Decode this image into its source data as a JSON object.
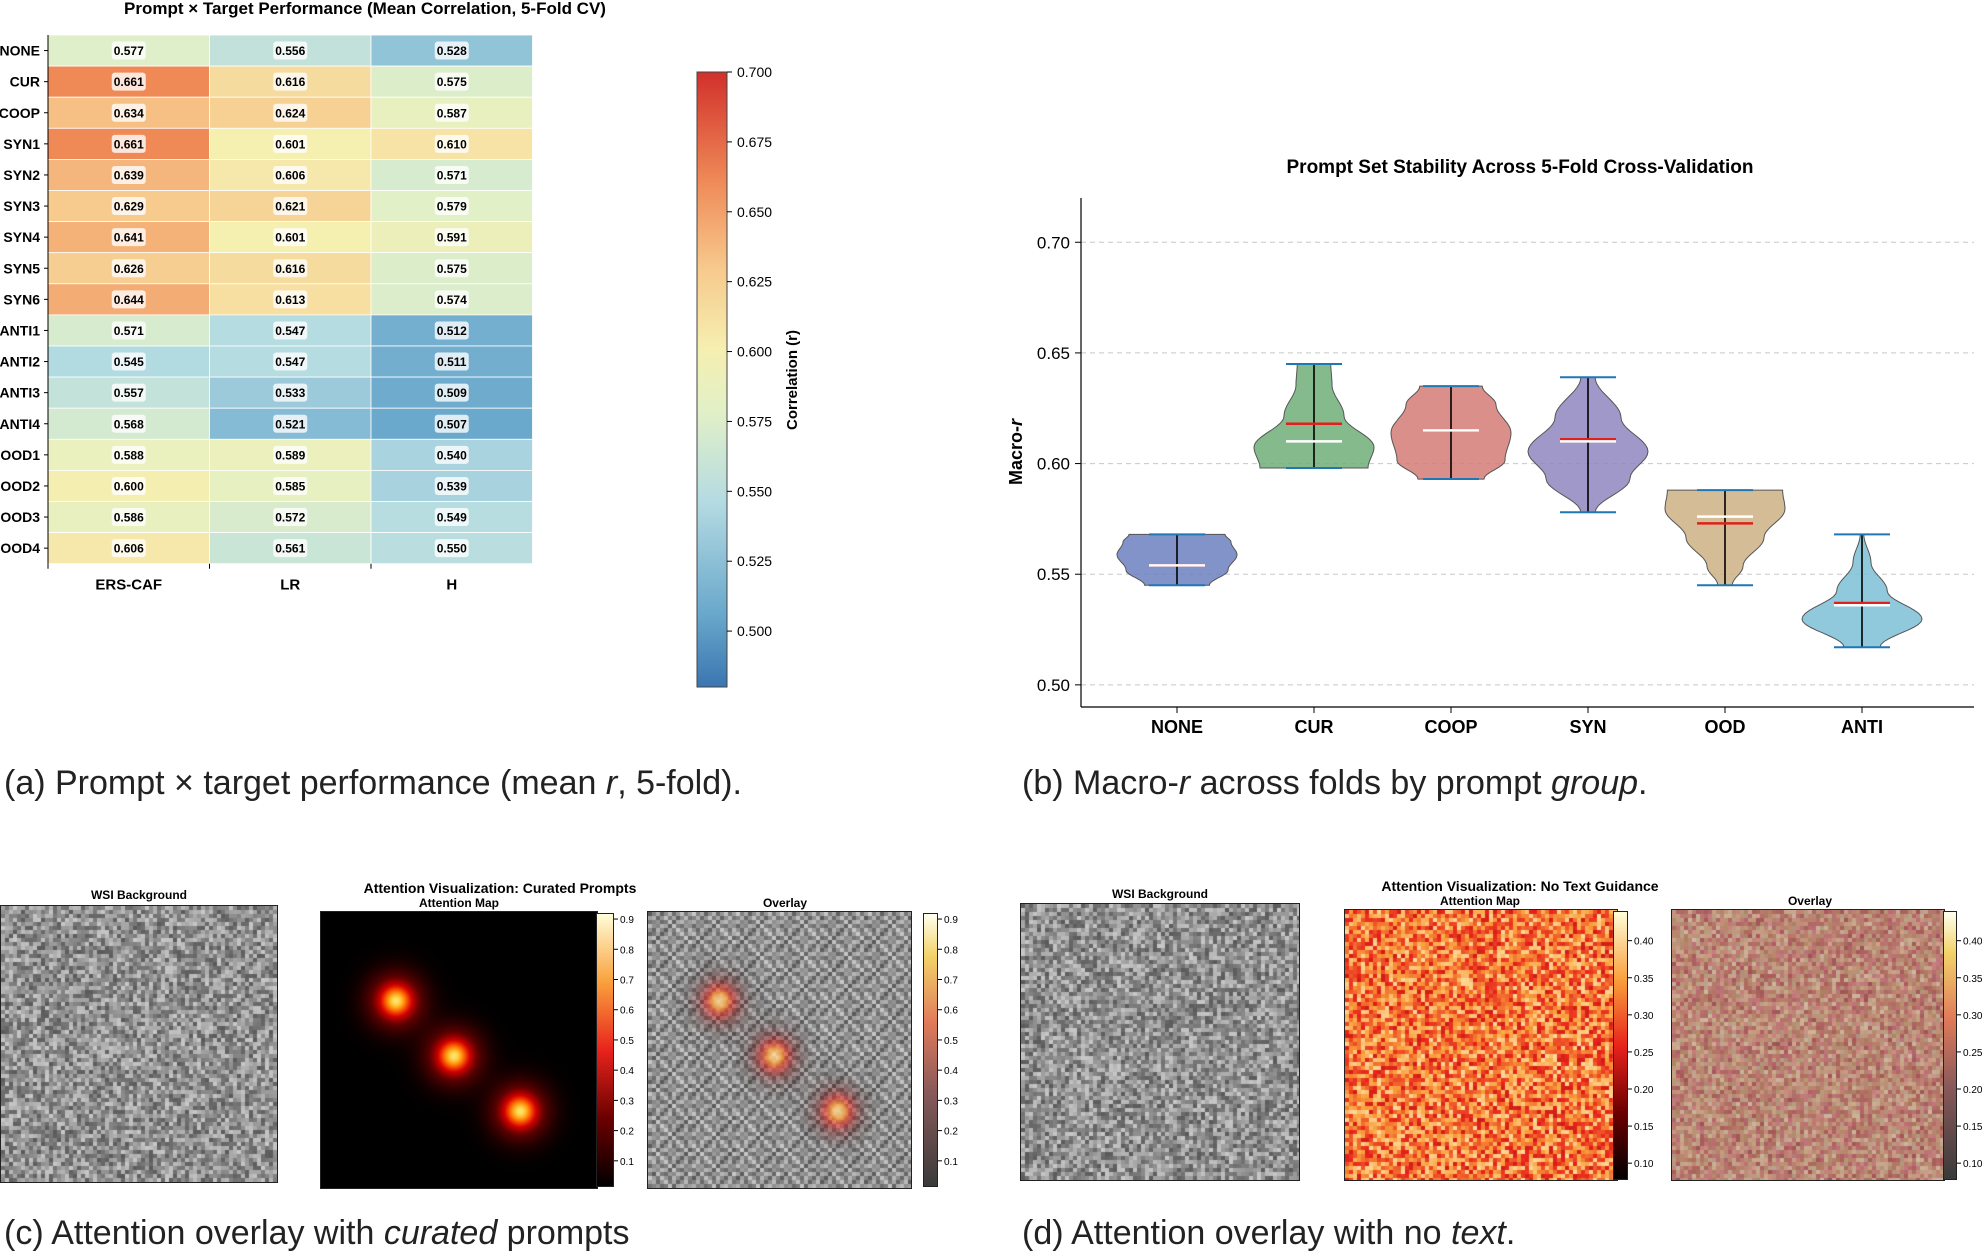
{
  "captions": {
    "a": {
      "pre": "(a) Prompt × target performance (mean ",
      "em": "r",
      "post": ", 5-fold)."
    },
    "b": {
      "pre": "(b) Macro-",
      "em1": "r",
      "mid": " across folds by prompt ",
      "em2": "group",
      "post": "."
    },
    "c": {
      "pre": "(c) Attention overlay with ",
      "em": "curated",
      "post": " prompts"
    },
    "d": {
      "pre": "(d) Attention overlay with no ",
      "em": "text",
      "post": "."
    }
  },
  "chart_data": [
    {
      "type": "heatmap",
      "title": "Prompt × Target Performance (Mean Correlation, 5-Fold CV)",
      "columns": [
        "ERS-CAF",
        "LR",
        "H"
      ],
      "rows": [
        "NONE",
        "CUR",
        "COOP",
        "SYN1",
        "SYN2",
        "SYN3",
        "SYN4",
        "SYN5",
        "SYN6",
        "ANTI1",
        "ANTI2",
        "ANTI3",
        "ANTI4",
        "OOD1",
        "OOD2",
        "OOD3",
        "OOD4"
      ],
      "values": [
        [
          0.577,
          0.556,
          0.528
        ],
        [
          0.661,
          0.616,
          0.575
        ],
        [
          0.634,
          0.624,
          0.587
        ],
        [
          0.661,
          0.601,
          0.61
        ],
        [
          0.639,
          0.606,
          0.571
        ],
        [
          0.629,
          0.621,
          0.579
        ],
        [
          0.641,
          0.601,
          0.591
        ],
        [
          0.626,
          0.616,
          0.575
        ],
        [
          0.644,
          0.613,
          0.574
        ],
        [
          0.571,
          0.547,
          0.512
        ],
        [
          0.545,
          0.547,
          0.511
        ],
        [
          0.557,
          0.533,
          0.509
        ],
        [
          0.568,
          0.521,
          0.507
        ],
        [
          0.588,
          0.589,
          0.54
        ],
        [
          0.6,
          0.585,
          0.539
        ],
        [
          0.586,
          0.572,
          0.549
        ],
        [
          0.606,
          0.561,
          0.55
        ]
      ],
      "colorbar": {
        "label": "Correlation (r)",
        "range": [
          0.48,
          0.7
        ],
        "ticks": [
          0.5,
          0.525,
          0.55,
          0.575,
          0.6,
          0.625,
          0.65,
          0.675,
          0.7
        ],
        "colormap": "RdYlBu_r"
      }
    },
    {
      "type": "violin",
      "title": "Prompt Set Stability Across 5-Fold Cross-Validation",
      "ylabel_pre": "Macro-",
      "ylabel_em": "r",
      "ylim": [
        0.49,
        0.72
      ],
      "yticks": [
        0.5,
        0.55,
        0.6,
        0.65,
        0.7
      ],
      "grid": true,
      "categories": [
        "NONE",
        "CUR",
        "COOP",
        "SYN",
        "OOD",
        "ANTI"
      ],
      "colors": [
        "#6b80bf",
        "#6fae78",
        "#d47b76",
        "#8f86c0",
        "#cdb184",
        "#7cc0d6"
      ],
      "min": [
        0.545,
        0.598,
        0.593,
        0.578,
        0.545,
        0.517
      ],
      "max": [
        0.568,
        0.645,
        0.635,
        0.639,
        0.588,
        0.568
      ],
      "mean": [
        0.554,
        0.618,
        0.615,
        0.611,
        0.573,
        0.537
      ],
      "median": [
        0.554,
        0.61,
        0.615,
        0.61,
        0.576,
        0.536
      ],
      "shape": [
        [
          [
            0,
            0.54
          ],
          [
            0.3,
            0.85
          ],
          [
            0.6,
            1.0
          ],
          [
            0.85,
            0.9
          ],
          [
            1,
            0.8
          ]
        ],
        [
          [
            0,
            0.9
          ],
          [
            0.2,
            1.0
          ],
          [
            0.5,
            0.5
          ],
          [
            0.8,
            0.3
          ],
          [
            1,
            0.28
          ]
        ],
        [
          [
            0,
            0.55
          ],
          [
            0.2,
            0.9
          ],
          [
            0.5,
            1.0
          ],
          [
            0.8,
            0.75
          ],
          [
            1,
            0.52
          ]
        ],
        [
          [
            0,
            0.12
          ],
          [
            0.25,
            0.7
          ],
          [
            0.45,
            1.0
          ],
          [
            0.7,
            0.55
          ],
          [
            1,
            0.12
          ]
        ],
        [
          [
            0,
            0.12
          ],
          [
            0.2,
            0.3
          ],
          [
            0.5,
            0.65
          ],
          [
            0.8,
            1.0
          ],
          [
            1,
            0.96
          ]
        ],
        [
          [
            0,
            0.3
          ],
          [
            0.25,
            1.0
          ],
          [
            0.5,
            0.42
          ],
          [
            0.75,
            0.15
          ],
          [
            1,
            0.03
          ]
        ]
      ]
    },
    {
      "type": "heatmap",
      "title": "Attention Visualization: Curated Prompts",
      "panels": {
        "background": "WSI Background",
        "map": "Attention Map",
        "overlay": "Overlay"
      },
      "colorbar_ticks": [
        0.1,
        0.2,
        0.3,
        0.4,
        0.5,
        0.6,
        0.7,
        0.8,
        0.9
      ],
      "colorbar_range": [
        0.02,
        0.92
      ],
      "blobs": [
        {
          "cx": 0.27,
          "cy": 0.32
        },
        {
          "cx": 0.48,
          "cy": 0.52
        },
        {
          "cx": 0.72,
          "cy": 0.72
        }
      ]
    },
    {
      "type": "heatmap",
      "title": "Attention Visualization: No Text Guidance",
      "panels": {
        "background": "WSI Background",
        "map": "Attention Map",
        "overlay": "Overlay"
      },
      "colorbar_ticks": [
        0.1,
        0.15,
        0.2,
        0.25,
        0.3,
        0.35,
        0.4
      ],
      "colorbar_range": [
        0.08,
        0.44
      ]
    }
  ]
}
